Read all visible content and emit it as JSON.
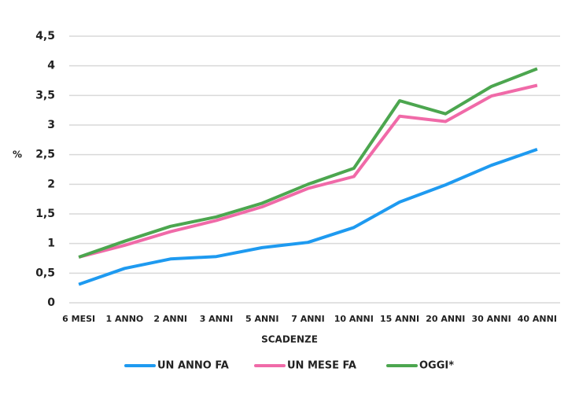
{
  "chart_data": {
    "type": "line",
    "y_label": "%",
    "x_label": "SCADENZE",
    "categories": [
      "6 MESI",
      "1 ANNO",
      "2 ANNI",
      "3 ANNI",
      "5 ANNI",
      "7 ANNI",
      "10 ANNI",
      "15 ANNI",
      "20 ANNI",
      "30 ANNI",
      "40 ANNI"
    ],
    "series": [
      {
        "name": "UN ANNO FA",
        "color": "#1e9af0",
        "values": [
          0.31,
          0.58,
          0.74,
          0.78,
          0.93,
          1.02,
          1.27,
          1.7,
          1.99,
          2.32,
          2.59
        ]
      },
      {
        "name": "UN MESE FA",
        "color": "#f06aa8",
        "values": [
          0.77,
          0.97,
          1.2,
          1.39,
          1.62,
          1.93,
          2.13,
          3.15,
          3.06,
          3.49,
          3.67
        ]
      },
      {
        "name": "OGGI*",
        "color": "#4ca64f",
        "values": [
          0.77,
          1.04,
          1.29,
          1.45,
          1.68,
          2.0,
          2.27,
          3.41,
          3.19,
          3.65,
          3.95
        ]
      }
    ],
    "ylim": [
      0,
      4.5
    ],
    "yticks": [
      0,
      {
        "value": 0.5,
        "label": "0,5"
      },
      1,
      {
        "value": 1.5,
        "label": "1,5"
      },
      2,
      {
        "value": 2.5,
        "label": "2,5"
      },
      3,
      {
        "value": 3.5,
        "label": "3,5"
      },
      4,
      {
        "value": 4.5,
        "label": "4,5"
      }
    ],
    "grid": true,
    "legend": "bottom"
  }
}
